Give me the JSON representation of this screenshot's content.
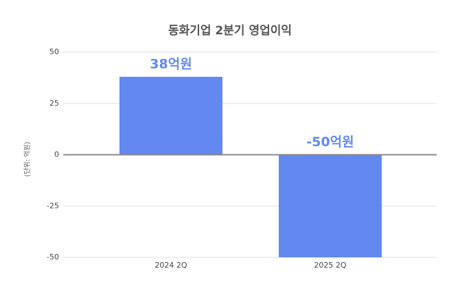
{
  "chart_data": {
    "type": "bar",
    "title": "동화기업 2분기 영업이익",
    "y_label": "(단위: 억원)",
    "categories": [
      "2024 2Q",
      "2025 2Q"
    ],
    "values": [
      38,
      -50
    ],
    "value_labels": [
      "38억원",
      "-50억원"
    ],
    "color": "#6389f0",
    "ylim": [
      -50,
      50
    ],
    "yticks": [
      -50,
      -25,
      0,
      25,
      50
    ],
    "grid": true
  }
}
